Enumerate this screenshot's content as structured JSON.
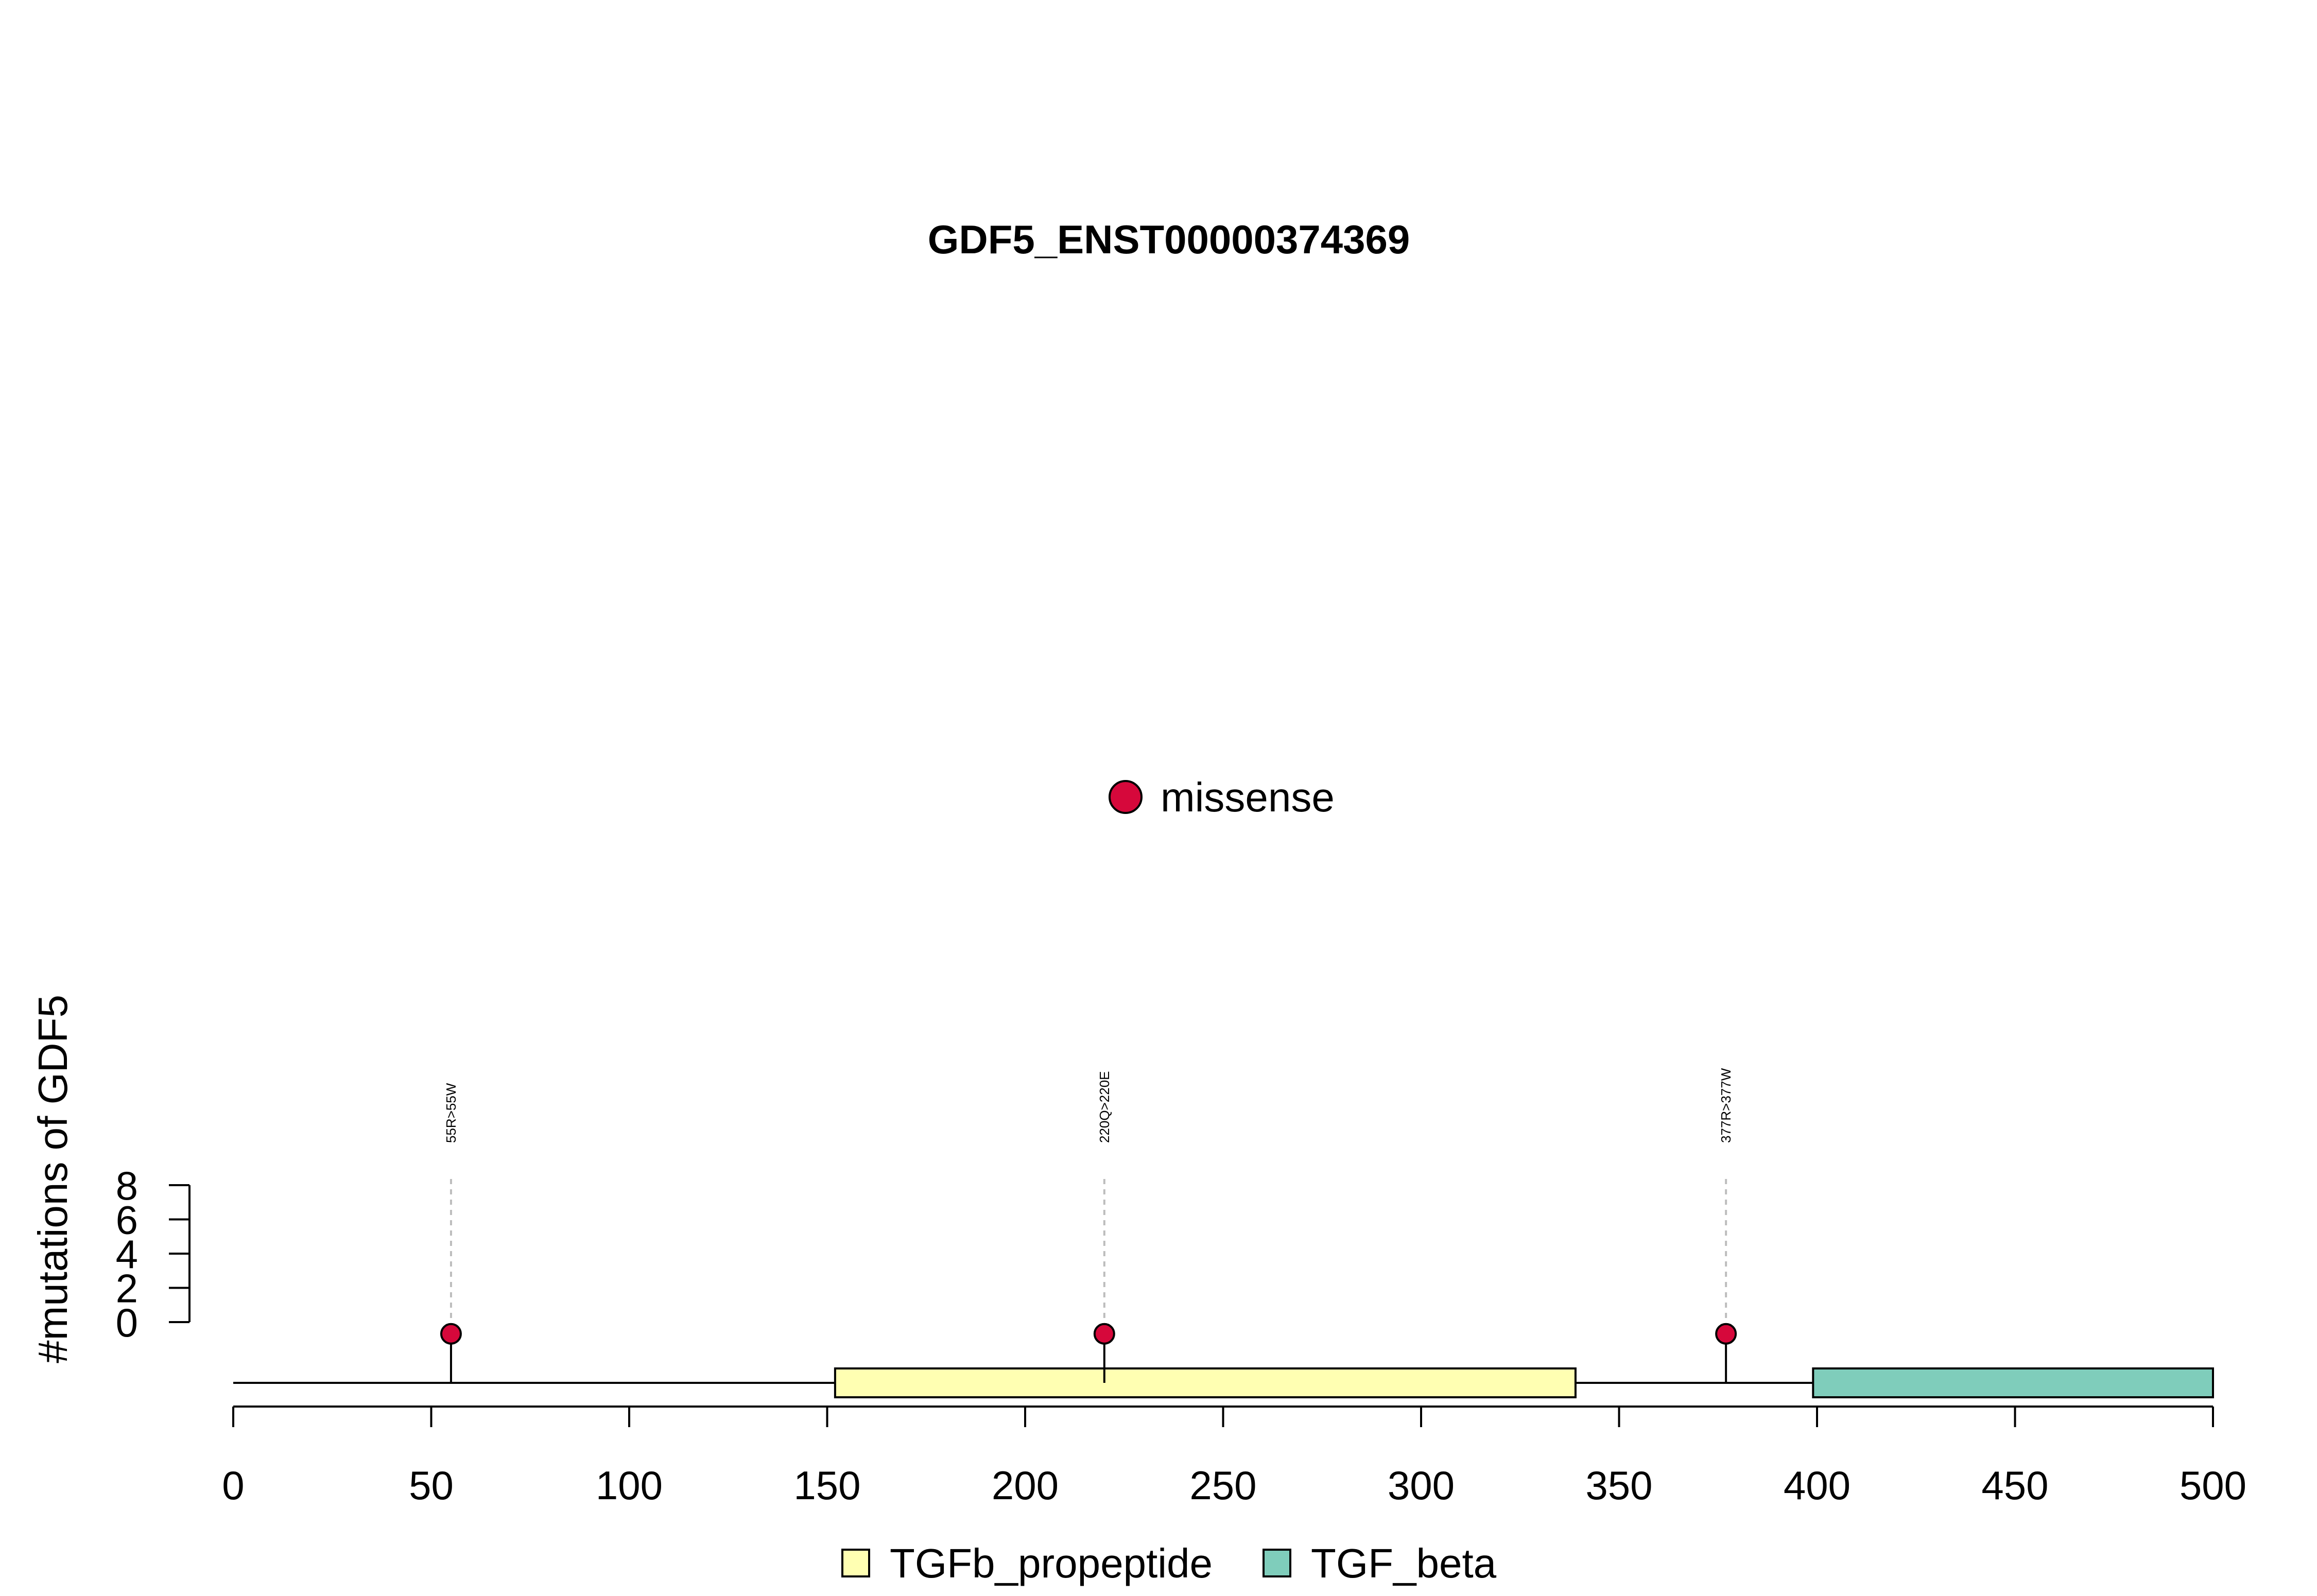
{
  "chart_data": {
    "type": "lollipop",
    "title": "GDF5_ENST00000374369",
    "ylabel": "#mutations of GDF5",
    "xlim": [
      0,
      500
    ],
    "x_ticks": [
      0,
      50,
      100,
      150,
      200,
      250,
      300,
      350,
      400,
      450,
      500
    ],
    "ylim": [
      0,
      8
    ],
    "y_ticks": [
      0,
      2,
      4,
      6,
      8
    ],
    "mutation_legend": [
      {
        "label": "missense",
        "color": "#D6083B"
      }
    ],
    "mutations": [
      {
        "position": 55,
        "count": 1,
        "label": "55R>55W",
        "type": "missense"
      },
      {
        "position": 220,
        "count": 1,
        "label": "220Q>220E",
        "type": "missense"
      },
      {
        "position": 377,
        "count": 1,
        "label": "377R>377W",
        "type": "missense"
      }
    ],
    "domains": [
      {
        "name": "TGFb_propeptide",
        "start": 152,
        "end": 339,
        "color": "#FFFFB2"
      },
      {
        "name": "TGF_beta",
        "start": 399,
        "end": 500,
        "color": "#7FCDBB"
      }
    ],
    "protein_length": 500
  }
}
